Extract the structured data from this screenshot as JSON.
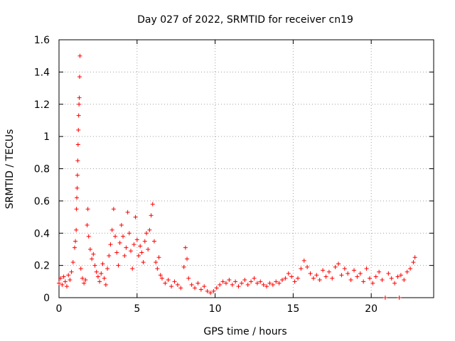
{
  "colors": {
    "series": "#ff0000",
    "grid": "#a0a0a0",
    "axis": "#000000",
    "background": "#ffffff"
  },
  "chart_data": {
    "type": "scatter",
    "title": "Day 027 of 2022, SRMTID for receiver cn19",
    "xlabel": "GPS time / hours",
    "ylabel": "SRMTID / TECUs",
    "xlim": [
      0,
      24
    ],
    "ylim": [
      0,
      1.6
    ],
    "xticks": [
      0,
      5,
      10,
      15,
      20
    ],
    "xtick_labels": [
      "0",
      "5",
      "10",
      "15",
      "20"
    ],
    "yticks": [
      0,
      0.2,
      0.4,
      0.6,
      0.8,
      1.0,
      1.2,
      1.4,
      1.6
    ],
    "ytick_labels": [
      "0",
      "0.2",
      "0.4",
      "0.6",
      "0.8",
      "1",
      "1.2",
      "1.4",
      "1.6"
    ],
    "grid": true,
    "marker": "+",
    "series": [
      {
        "name": "SRMTID",
        "points": [
          [
            0.0,
            0.09
          ],
          [
            0.1,
            0.12
          ],
          [
            0.2,
            0.08
          ],
          [
            0.3,
            0.13
          ],
          [
            0.4,
            0.1
          ],
          [
            0.5,
            0.07
          ],
          [
            0.6,
            0.14
          ],
          [
            0.7,
            0.11
          ],
          [
            0.8,
            0.16
          ],
          [
            0.9,
            0.22
          ],
          [
            1.0,
            0.31
          ],
          [
            1.05,
            0.35
          ],
          [
            1.1,
            0.42
          ],
          [
            1.12,
            0.55
          ],
          [
            1.14,
            0.62
          ],
          [
            1.16,
            0.68
          ],
          [
            1.18,
            0.76
          ],
          [
            1.2,
            0.85
          ],
          [
            1.22,
            0.95
          ],
          [
            1.24,
            1.04
          ],
          [
            1.26,
            1.13
          ],
          [
            1.28,
            1.2
          ],
          [
            1.3,
            1.24
          ],
          [
            1.32,
            1.37
          ],
          [
            1.34,
            1.5
          ],
          [
            1.4,
            0.18
          ],
          [
            1.5,
            0.12
          ],
          [
            1.6,
            0.09
          ],
          [
            1.7,
            0.11
          ],
          [
            1.8,
            0.45
          ],
          [
            1.85,
            0.55
          ],
          [
            1.9,
            0.38
          ],
          [
            2.0,
            0.3
          ],
          [
            2.1,
            0.24
          ],
          [
            2.2,
            0.27
          ],
          [
            2.3,
            0.2
          ],
          [
            2.4,
            0.16
          ],
          [
            2.5,
            0.13
          ],
          [
            2.6,
            0.1
          ],
          [
            2.7,
            0.15
          ],
          [
            2.8,
            0.21
          ],
          [
            2.9,
            0.12
          ],
          [
            3.0,
            0.08
          ],
          [
            3.1,
            0.18
          ],
          [
            3.2,
            0.26
          ],
          [
            3.3,
            0.33
          ],
          [
            3.4,
            0.42
          ],
          [
            3.5,
            0.55
          ],
          [
            3.6,
            0.38
          ],
          [
            3.7,
            0.28
          ],
          [
            3.8,
            0.2
          ],
          [
            3.9,
            0.34
          ],
          [
            4.0,
            0.45
          ],
          [
            4.1,
            0.38
          ],
          [
            4.2,
            0.26
          ],
          [
            4.3,
            0.31
          ],
          [
            4.4,
            0.53
          ],
          [
            4.5,
            0.4
          ],
          [
            4.6,
            0.29
          ],
          [
            4.7,
            0.18
          ],
          [
            4.8,
            0.33
          ],
          [
            4.9,
            0.5
          ],
          [
            5.0,
            0.36
          ],
          [
            5.1,
            0.26
          ],
          [
            5.2,
            0.32
          ],
          [
            5.3,
            0.28
          ],
          [
            5.4,
            0.22
          ],
          [
            5.5,
            0.35
          ],
          [
            5.6,
            0.4
          ],
          [
            5.7,
            0.3
          ],
          [
            5.8,
            0.42
          ],
          [
            5.9,
            0.51
          ],
          [
            6.0,
            0.58
          ],
          [
            6.1,
            0.35
          ],
          [
            6.2,
            0.22
          ],
          [
            6.3,
            0.18
          ],
          [
            6.4,
            0.25
          ],
          [
            6.5,
            0.14
          ],
          [
            6.6,
            0.12
          ],
          [
            6.8,
            0.09
          ],
          [
            7.0,
            0.11
          ],
          [
            7.2,
            0.07
          ],
          [
            7.4,
            0.1
          ],
          [
            7.6,
            0.08
          ],
          [
            7.8,
            0.06
          ],
          [
            8.0,
            0.19
          ],
          [
            8.1,
            0.31
          ],
          [
            8.2,
            0.24
          ],
          [
            8.3,
            0.12
          ],
          [
            8.5,
            0.08
          ],
          [
            8.7,
            0.06
          ],
          [
            8.9,
            0.09
          ],
          [
            9.1,
            0.05
          ],
          [
            9.3,
            0.07
          ],
          [
            9.5,
            0.04
          ],
          [
            9.7,
            0.03
          ],
          [
            9.9,
            0.04
          ],
          [
            10.1,
            0.06
          ],
          [
            10.3,
            0.08
          ],
          [
            10.5,
            0.1
          ],
          [
            10.7,
            0.09
          ],
          [
            10.9,
            0.11
          ],
          [
            11.1,
            0.08
          ],
          [
            11.3,
            0.1
          ],
          [
            11.5,
            0.07
          ],
          [
            11.7,
            0.09
          ],
          [
            11.9,
            0.11
          ],
          [
            12.1,
            0.08
          ],
          [
            12.3,
            0.1
          ],
          [
            12.5,
            0.12
          ],
          [
            12.7,
            0.09
          ],
          [
            12.9,
            0.1
          ],
          [
            13.1,
            0.08
          ],
          [
            13.3,
            0.07
          ],
          [
            13.5,
            0.09
          ],
          [
            13.7,
            0.08
          ],
          [
            13.9,
            0.1
          ],
          [
            14.1,
            0.09
          ],
          [
            14.3,
            0.11
          ],
          [
            14.5,
            0.12
          ],
          [
            14.7,
            0.15
          ],
          [
            14.9,
            0.13
          ],
          [
            15.1,
            0.1
          ],
          [
            15.3,
            0.12
          ],
          [
            15.5,
            0.18
          ],
          [
            15.7,
            0.23
          ],
          [
            15.9,
            0.19
          ],
          [
            16.1,
            0.15
          ],
          [
            16.3,
            0.12
          ],
          [
            16.5,
            0.14
          ],
          [
            16.7,
            0.11
          ],
          [
            16.9,
            0.17
          ],
          [
            17.1,
            0.13
          ],
          [
            17.3,
            0.16
          ],
          [
            17.5,
            0.12
          ],
          [
            17.7,
            0.19
          ],
          [
            17.9,
            0.21
          ],
          [
            18.1,
            0.14
          ],
          [
            18.3,
            0.18
          ],
          [
            18.5,
            0.15
          ],
          [
            18.7,
            0.11
          ],
          [
            18.9,
            0.17
          ],
          [
            19.1,
            0.13
          ],
          [
            19.3,
            0.15
          ],
          [
            19.5,
            0.1
          ],
          [
            19.7,
            0.18
          ],
          [
            19.9,
            0.12
          ],
          [
            20.1,
            0.09
          ],
          [
            20.3,
            0.13
          ],
          [
            20.5,
            0.16
          ],
          [
            20.7,
            0.11
          ],
          [
            20.9,
            0.0
          ],
          [
            21.1,
            0.15
          ],
          [
            21.3,
            0.12
          ],
          [
            21.5,
            0.09
          ],
          [
            21.7,
            0.13
          ],
          [
            21.8,
            0.0
          ],
          [
            21.9,
            0.14
          ],
          [
            22.1,
            0.11
          ],
          [
            22.3,
            0.16
          ],
          [
            22.5,
            0.18
          ],
          [
            22.7,
            0.22
          ],
          [
            22.8,
            0.25
          ]
        ]
      }
    ]
  }
}
